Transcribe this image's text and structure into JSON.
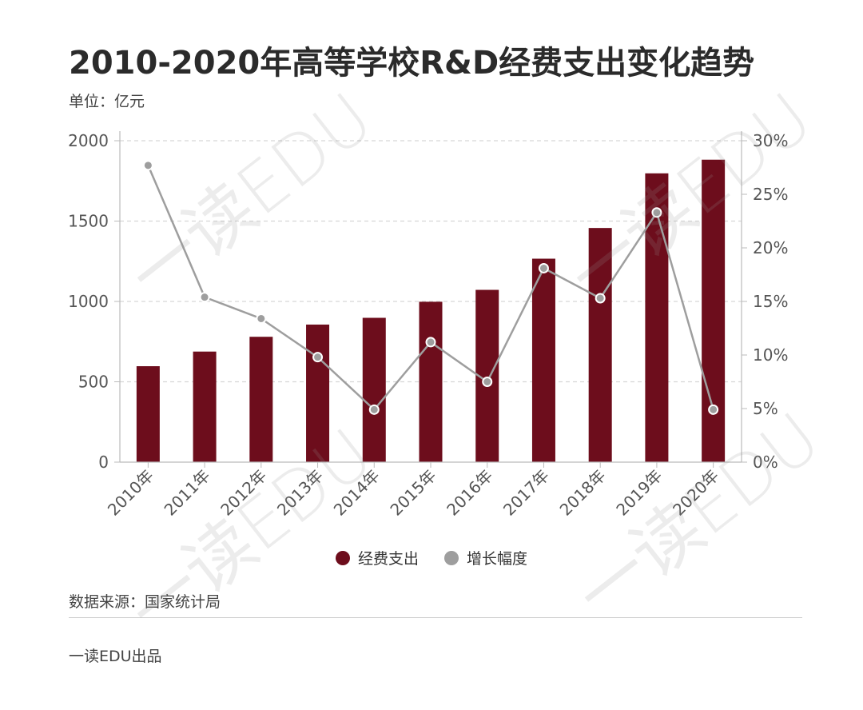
{
  "title": "2010-2020年高等学校R&D经费支出变化趋势",
  "unit": "单位：亿元",
  "source": "数据来源：国家统计局",
  "producer": "一读EDU出品",
  "watermark": "一读EDU",
  "colors": {
    "bar": "#6d0d1c",
    "line": "#9e9e9e",
    "grid": "#d6d6d6",
    "axis": "#bbbbbb"
  },
  "chart_data": {
    "type": "bar",
    "categories": [
      "2010年",
      "2011年",
      "2012年",
      "2013年",
      "2014年",
      "2015年",
      "2016年",
      "2017年",
      "2018年",
      "2019年",
      "2020年"
    ],
    "series": [
      {
        "name": "经费支出",
        "type": "bar",
        "axis": "left",
        "values": [
          597,
          688,
          780,
          856,
          898,
          998,
          1072,
          1266,
          1457,
          1797,
          1882
        ]
      },
      {
        "name": "增长幅度",
        "type": "line",
        "axis": "right",
        "values": [
          27.7,
          15.4,
          13.4,
          9.8,
          4.9,
          11.2,
          7.5,
          18.1,
          15.3,
          23.3,
          4.9
        ]
      }
    ],
    "y_left": {
      "min": 0,
      "max": 2000,
      "ticks": [
        "0",
        "500",
        "1000",
        "1500",
        "2000"
      ]
    },
    "y_right": {
      "min": 0,
      "max": 30,
      "ticks": [
        "0%",
        "5%",
        "10%",
        "15%",
        "20%",
        "25%",
        "30%"
      ]
    },
    "grid": true,
    "legend_position": "bottom-center"
  }
}
